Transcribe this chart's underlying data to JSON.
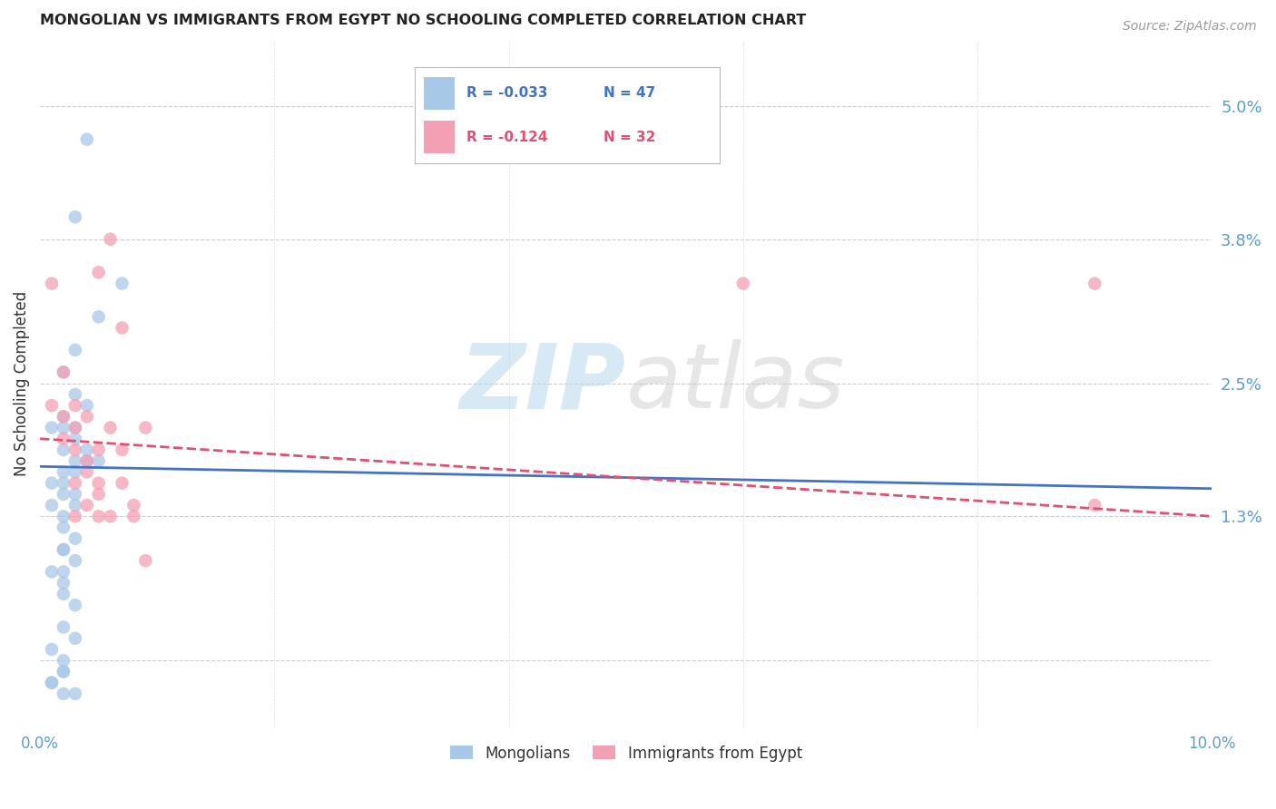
{
  "title": "MONGOLIAN VS IMMIGRANTS FROM EGYPT NO SCHOOLING COMPLETED CORRELATION CHART",
  "source": "Source: ZipAtlas.com",
  "ylabel": "No Schooling Completed",
  "xlim": [
    0.0,
    0.1
  ],
  "ylim": [
    -0.006,
    0.056
  ],
  "yticks_right": [
    0.013,
    0.025,
    0.038,
    0.05
  ],
  "yticklabels_right": [
    "1.3%",
    "2.5%",
    "3.8%",
    "5.0%"
  ],
  "watermark_part1": "ZIP",
  "watermark_part2": "atlas",
  "legend_r1": "-0.033",
  "legend_n1": "47",
  "legend_r2": "-0.124",
  "legend_n2": "32",
  "color_mongolian": "#a8c8e8",
  "color_egypt": "#f4a0b4",
  "color_line_mongolian": "#4472c4",
  "color_line_egypt": "#e05070",
  "color_axis_text": "#5b9bd5",
  "background_color": "#ffffff",
  "mongolian_x": [
    0.004,
    0.003,
    0.007,
    0.005,
    0.003,
    0.002,
    0.003,
    0.004,
    0.002,
    0.001,
    0.002,
    0.003,
    0.003,
    0.004,
    0.002,
    0.003,
    0.004,
    0.005,
    0.003,
    0.002,
    0.001,
    0.002,
    0.003,
    0.002,
    0.003,
    0.001,
    0.002,
    0.002,
    0.003,
    0.002,
    0.002,
    0.003,
    0.002,
    0.001,
    0.002,
    0.002,
    0.003,
    0.002,
    0.003,
    0.001,
    0.002,
    0.002,
    0.001,
    0.003,
    0.002,
    0.001,
    0.002
  ],
  "mongolian_y": [
    0.047,
    0.04,
    0.034,
    0.031,
    0.028,
    0.026,
    0.024,
    0.023,
    0.022,
    0.021,
    0.021,
    0.021,
    0.02,
    0.019,
    0.019,
    0.018,
    0.018,
    0.018,
    0.017,
    0.017,
    0.016,
    0.016,
    0.015,
    0.015,
    0.014,
    0.014,
    0.013,
    0.012,
    0.011,
    0.01,
    0.01,
    0.009,
    0.008,
    0.008,
    0.007,
    0.006,
    0.005,
    0.003,
    0.002,
    0.001,
    0.0,
    -0.001,
    -0.002,
    -0.003,
    -0.003,
    -0.002,
    -0.001
  ],
  "egypt_x": [
    0.005,
    0.001,
    0.002,
    0.001,
    0.003,
    0.002,
    0.004,
    0.003,
    0.002,
    0.003,
    0.004,
    0.004,
    0.003,
    0.005,
    0.005,
    0.004,
    0.003,
    0.005,
    0.006,
    0.005,
    0.006,
    0.007,
    0.007,
    0.008,
    0.009,
    0.008,
    0.006,
    0.007,
    0.009,
    0.06,
    0.09,
    0.09
  ],
  "egypt_y": [
    0.035,
    0.034,
    0.026,
    0.023,
    0.023,
    0.022,
    0.022,
    0.021,
    0.02,
    0.019,
    0.018,
    0.017,
    0.016,
    0.016,
    0.015,
    0.014,
    0.013,
    0.013,
    0.021,
    0.019,
    0.013,
    0.019,
    0.016,
    0.014,
    0.021,
    0.013,
    0.038,
    0.03,
    0.009,
    0.034,
    0.034,
    0.014
  ]
}
